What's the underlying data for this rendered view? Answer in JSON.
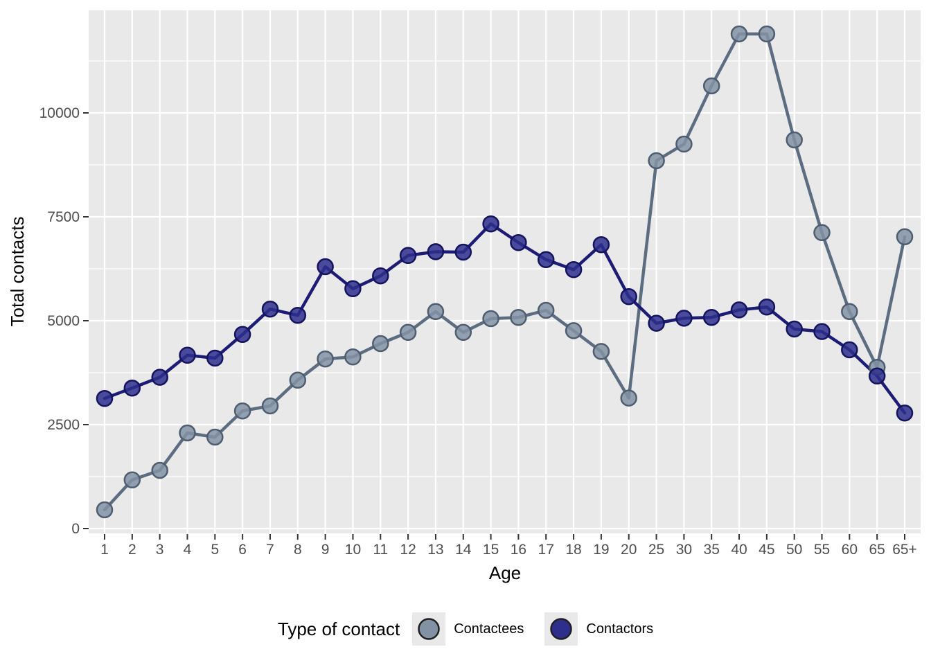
{
  "colors": {
    "page_bg": "#ffffff",
    "panel_bg": "#e9e9e9",
    "grid": "#ffffff",
    "tick_mark": "#333333",
    "tick_label": "#4d4d4d",
    "axis_title": "#000000",
    "legend_key_bg": "#e9e9e9",
    "legend_key_stroke": "#1f1f1f"
  },
  "chart_data": {
    "type": "line",
    "title": "",
    "xlabel": "Age",
    "ylabel": "Total contacts",
    "categories": [
      "1",
      "2",
      "3",
      "4",
      "5",
      "6",
      "7",
      "8",
      "9",
      "10",
      "11",
      "12",
      "13",
      "14",
      "15",
      "16",
      "17",
      "18",
      "19",
      "20",
      "25",
      "30",
      "35",
      "40",
      "45",
      "50",
      "55",
      "60",
      "65",
      "65+"
    ],
    "y_ticks": [
      0,
      2500,
      5000,
      7500,
      10000
    ],
    "ylim": [
      0,
      12450
    ],
    "grid": "white major gridlines on gray panel; horizontal minors at 1250-unit midpoints; vertical majors at every category",
    "legend_position": "bottom",
    "legend_title": "Type of contact",
    "series": [
      {
        "name": "Contactees",
        "point_fill": "#8292a4",
        "point_stroke": "#4e5d70",
        "line_color": "#5d6d81",
        "values": [
          450,
          1170,
          1400,
          2300,
          2200,
          2830,
          2950,
          3570,
          4080,
          4130,
          4450,
          4720,
          5220,
          4720,
          5050,
          5080,
          5250,
          4760,
          4260,
          3140,
          8850,
          9250,
          10650,
          11900,
          11900,
          9350,
          7120,
          5220,
          3880,
          7020
        ]
      },
      {
        "name": "Contactors",
        "point_fill": "#2e2e8c",
        "point_stroke": "#13135f",
        "line_color": "#1c1c77",
        "values": [
          3130,
          3380,
          3640,
          4170,
          4100,
          4670,
          5280,
          5130,
          6300,
          5770,
          6080,
          6570,
          6660,
          6650,
          7330,
          6880,
          6470,
          6230,
          6830,
          5580,
          4940,
          5060,
          5080,
          5260,
          5330,
          4800,
          4740,
          4300,
          3670,
          2780
        ]
      }
    ]
  }
}
